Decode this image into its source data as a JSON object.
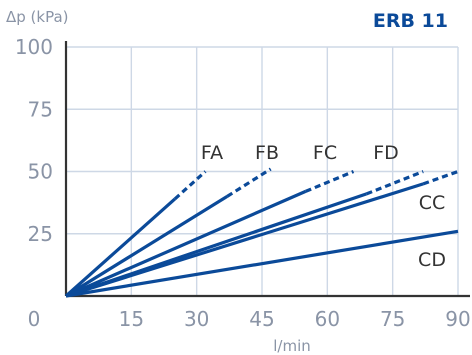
{
  "chart_data": {
    "type": "line",
    "title": "ERB 11",
    "xlabel": "l/min",
    "ylabel": "Δp (kPa)",
    "xlim": [
      0,
      90
    ],
    "ylim": [
      0,
      100
    ],
    "xticks": [
      0,
      15,
      30,
      45,
      60,
      75,
      90
    ],
    "yticks": [
      0,
      25,
      50,
      75,
      100
    ],
    "grid": true,
    "colors": {
      "line": "#0b4a99",
      "grid": "#ced8e6",
      "axis": "#333333",
      "title": "#0b4a99"
    },
    "series": [
      {
        "name": "FA",
        "solid": [
          [
            0,
            0
          ],
          [
            25,
            39
          ]
        ],
        "dashed": [
          [
            25,
            39
          ],
          [
            32,
            50
          ]
        ]
      },
      {
        "name": "FB",
        "solid": [
          [
            0,
            0
          ],
          [
            37,
            40
          ]
        ],
        "dashed": [
          [
            37,
            40
          ],
          [
            47,
            51
          ]
        ]
      },
      {
        "name": "FC",
        "solid": [
          [
            0,
            0
          ],
          [
            55,
            42
          ]
        ],
        "dashed": [
          [
            55,
            42
          ],
          [
            66,
            50
          ]
        ]
      },
      {
        "name": "FD",
        "solid": [
          [
            0,
            0
          ],
          [
            69,
            41
          ]
        ],
        "dashed": [
          [
            69,
            41
          ],
          [
            82,
            50
          ]
        ]
      },
      {
        "name": "CC",
        "solid": [
          [
            0,
            0
          ],
          [
            82,
            45
          ]
        ],
        "dashed": [
          [
            82,
            45
          ],
          [
            90,
            50
          ]
        ]
      },
      {
        "name": "CD",
        "solid": [
          [
            0,
            0
          ],
          [
            90,
            26
          ]
        ],
        "dashed": []
      }
    ]
  }
}
